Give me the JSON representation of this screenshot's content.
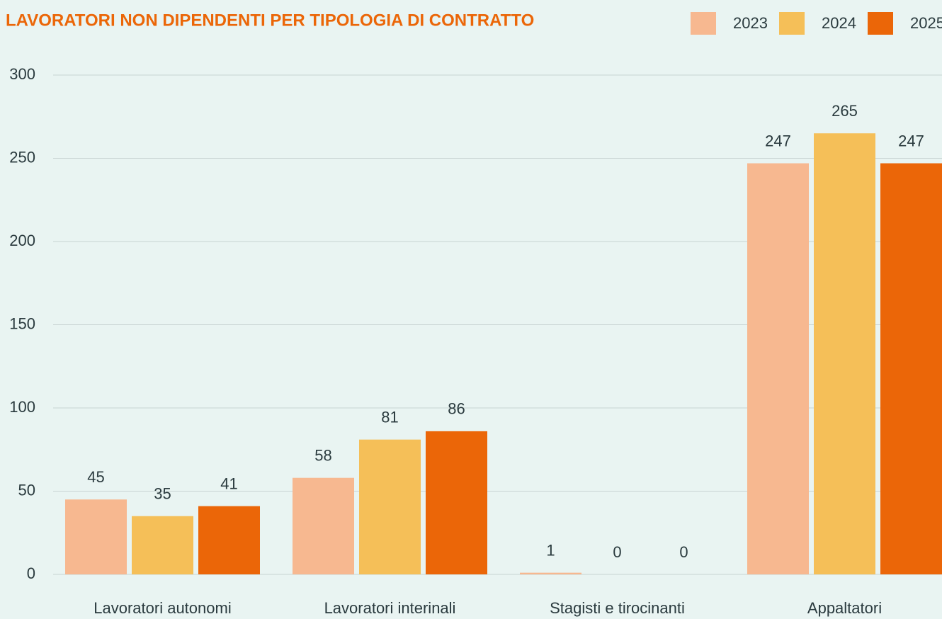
{
  "chart_data": {
    "type": "bar",
    "title": "LAVORATORI NON DIPENDENTI PER TIPOLOGIA DI CONTRATTO",
    "categories": [
      "Lavoratori autonomi",
      "Lavoratori interinali",
      "Stagisti e tirocinanti",
      "Appaltatori"
    ],
    "series": [
      {
        "name": "2023",
        "color": "#f7b890",
        "values": [
          45,
          58,
          1,
          247
        ]
      },
      {
        "name": "2024",
        "color": "#f5bf58",
        "values": [
          35,
          81,
          0,
          265
        ]
      },
      {
        "name": "2025",
        "color": "#eb6608",
        "values": [
          41,
          86,
          0,
          247
        ]
      }
    ],
    "ylim": [
      0,
      300
    ],
    "yticks": [
      0,
      50,
      100,
      150,
      200,
      250,
      300
    ],
    "grid": true,
    "legend": "top-right"
  }
}
